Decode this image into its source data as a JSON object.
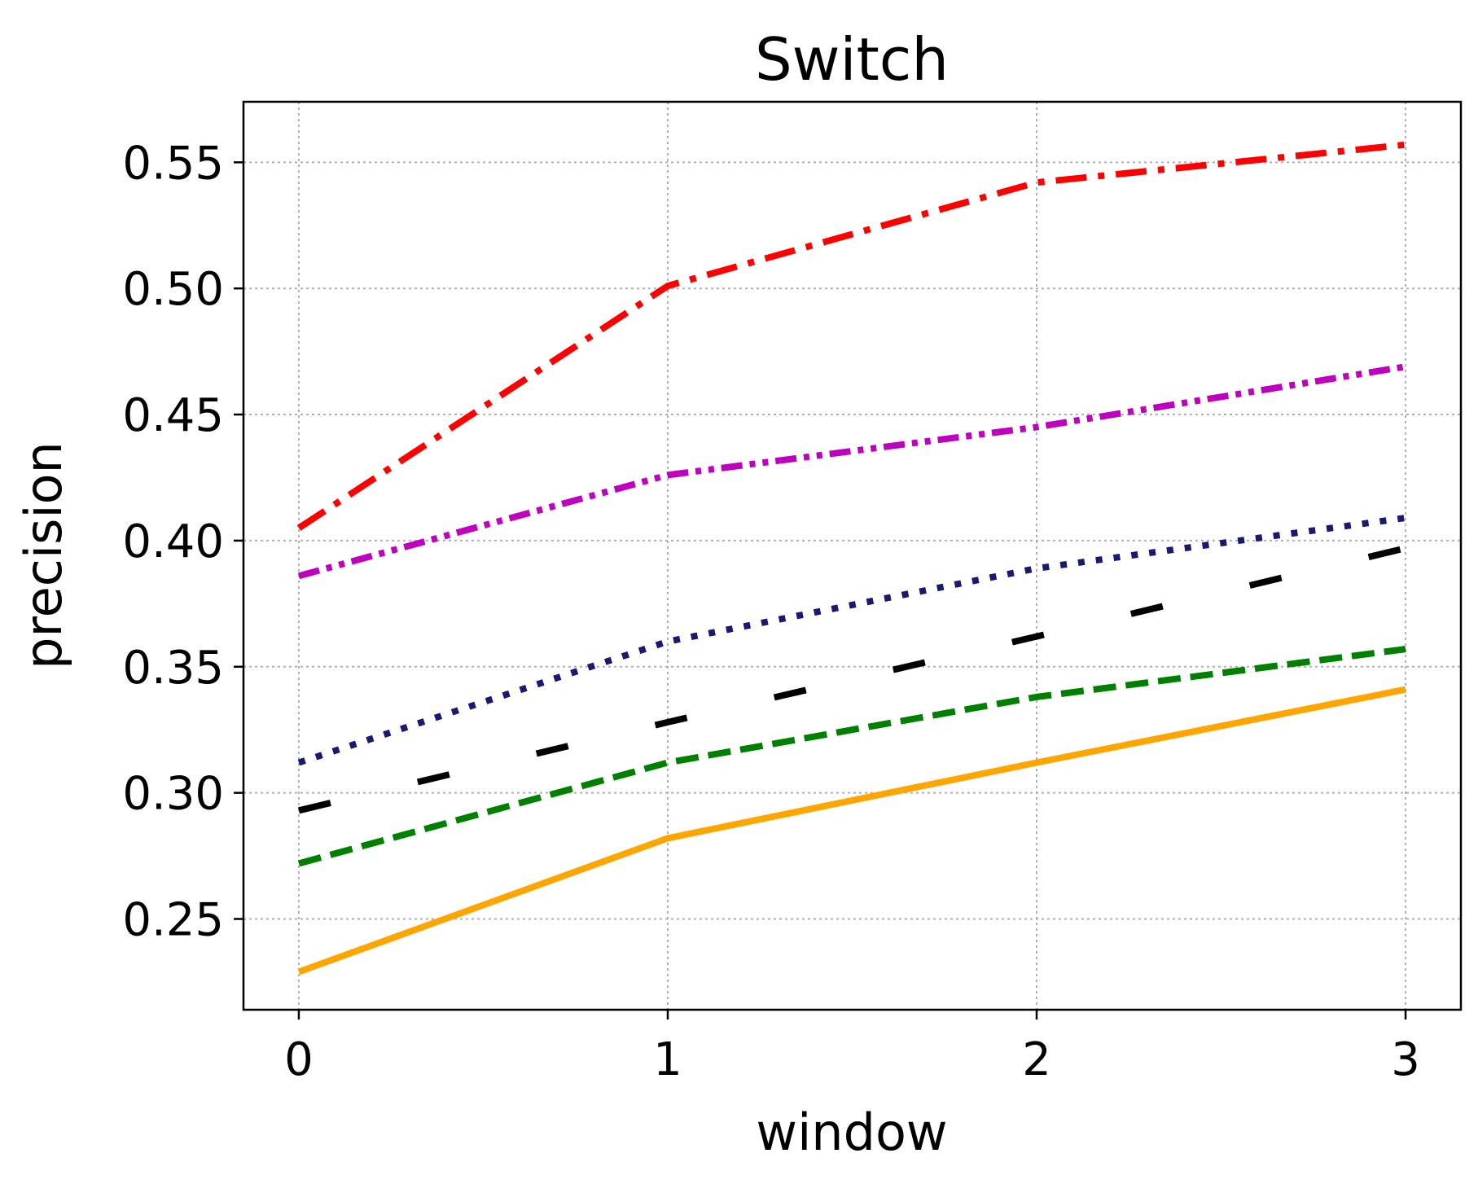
{
  "chart_data": {
    "type": "line",
    "title": "Switch",
    "xlabel": "window",
    "ylabel": "precision",
    "x": [
      0,
      1,
      2,
      3
    ],
    "xticks": [
      "0",
      "1",
      "2",
      "3"
    ],
    "yticks": [
      "0.25",
      "0.30",
      "0.35",
      "0.40",
      "0.45",
      "0.50",
      "0.55"
    ],
    "xlim": [
      -0.15,
      3.15
    ],
    "ylim": [
      0.214,
      0.574
    ],
    "grid": true,
    "series": [
      {
        "values": [
          0.405,
          0.501,
          0.542,
          0.557
        ],
        "color": "#ff0000",
        "style": "dashdot"
      },
      {
        "values": [
          0.386,
          0.426,
          0.445,
          0.469
        ],
        "color": "#bf00bf",
        "style": "dashdotdot"
      },
      {
        "values": [
          0.312,
          0.36,
          0.389,
          0.409
        ],
        "color": "#191970",
        "style": "dotted"
      },
      {
        "values": [
          0.293,
          0.328,
          0.362,
          0.397
        ],
        "color": "#000000",
        "style": "loosedash"
      },
      {
        "values": [
          0.272,
          0.312,
          0.338,
          0.357
        ],
        "color": "#008000",
        "style": "dashed"
      },
      {
        "values": [
          0.229,
          0.282,
          0.312,
          0.341
        ],
        "color": "#ffa500",
        "style": "solid"
      }
    ]
  }
}
